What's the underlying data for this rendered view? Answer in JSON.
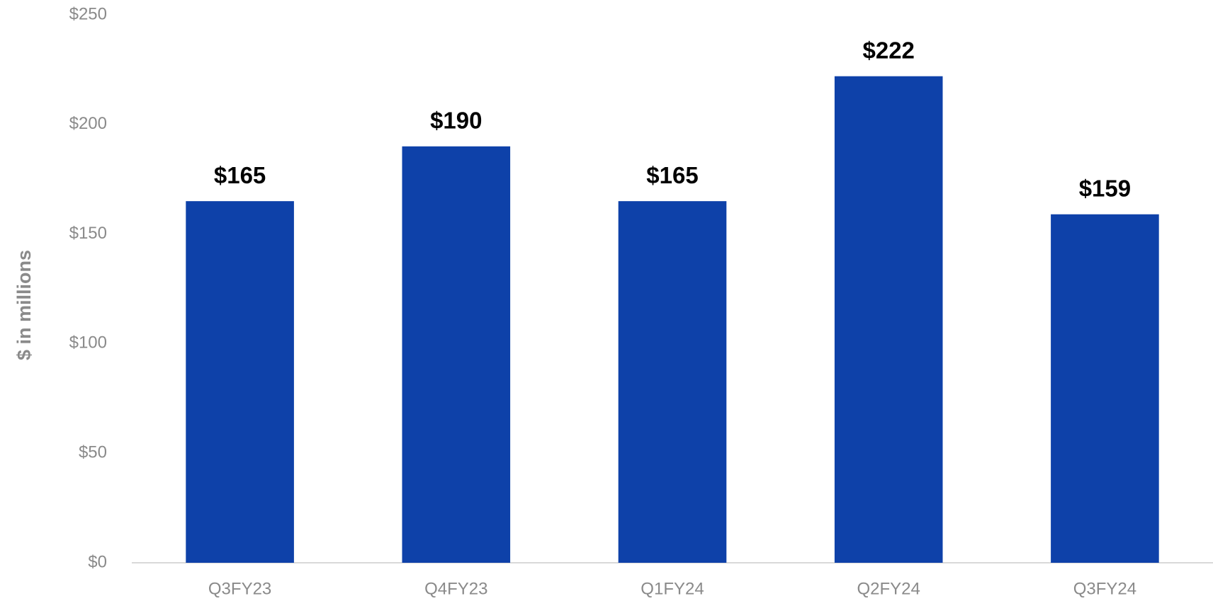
{
  "chart_data": {
    "type": "bar",
    "y_axis_label": "$ in millions",
    "categories": [
      "Q3FY23",
      "Q4FY23",
      "Q1FY24",
      "Q2FY24",
      "Q3FY24"
    ],
    "values": [
      165,
      190,
      165,
      222,
      159
    ],
    "value_labels": [
      "$165",
      "$190",
      "$165",
      "$222",
      "$159"
    ],
    "color": "#0e41a9",
    "ylim": [
      0,
      250
    ],
    "yticks": [
      {
        "value": 0,
        "label": "$0"
      },
      {
        "value": 50,
        "label": "$50"
      },
      {
        "value": 100,
        "label": "$100"
      },
      {
        "value": 150,
        "label": "$150"
      },
      {
        "value": 200,
        "label": "$200"
      },
      {
        "value": 250,
        "label": "$250"
      }
    ],
    "grid": false
  }
}
